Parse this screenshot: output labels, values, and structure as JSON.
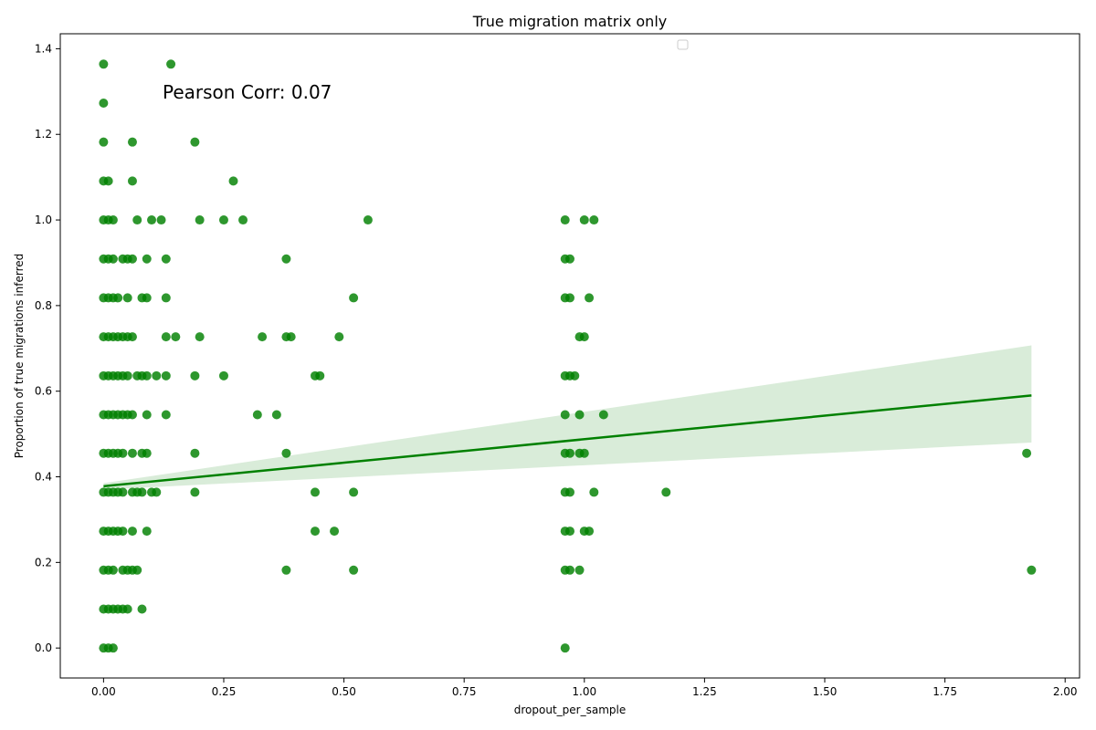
{
  "chart_data": {
    "type": "scatter",
    "title": "True migration matrix only",
    "xlabel": "dropout_per_sample",
    "ylabel": "Proportion of true migrations inferred",
    "xlim": [
      -0.09,
      2.03
    ],
    "ylim": [
      -0.07,
      1.435
    ],
    "xticks": [
      0.0,
      0.25,
      0.5,
      0.75,
      1.0,
      1.25,
      1.5,
      1.75,
      2.0
    ],
    "xtick_labels": [
      "0.00",
      "0.25",
      "0.50",
      "0.75",
      "1.00",
      "1.25",
      "1.50",
      "1.75",
      "2.00"
    ],
    "yticks": [
      0.0,
      0.2,
      0.4,
      0.6,
      0.8,
      1.0,
      1.2,
      1.4
    ],
    "ytick_labels": [
      "0.0",
      "0.2",
      "0.4",
      "0.6",
      "0.8",
      "1.0",
      "1.2",
      "1.4"
    ],
    "annotation": "Pearson Corr: 0.07",
    "colors": {
      "points": "#008000",
      "line": "#008000",
      "band": "#d9ecd9"
    },
    "grid": false,
    "legend": "top-right (empty)",
    "regression": {
      "x": [
        0.0,
        1.93
      ],
      "y": [
        0.378,
        0.59
      ],
      "ci_upper": [
        0.385,
        0.707
      ],
      "ci_lower": [
        0.37,
        0.48
      ]
    },
    "points": [
      [
        0,
        1.364
      ],
      [
        0.14,
        1.364
      ],
      [
        0,
        1.273
      ],
      [
        0,
        1.182
      ],
      [
        0.06,
        1.182
      ],
      [
        0.19,
        1.182
      ],
      [
        0,
        1.091
      ],
      [
        0.01,
        1.091
      ],
      [
        0.06,
        1.091
      ],
      [
        0.27,
        1.091
      ],
      [
        0,
        1.0
      ],
      [
        0.01,
        1.0
      ],
      [
        0.02,
        1.0
      ],
      [
        0.07,
        1.0
      ],
      [
        0.1,
        1.0
      ],
      [
        0.12,
        1.0
      ],
      [
        0.2,
        1.0
      ],
      [
        0.25,
        1.0
      ],
      [
        0.29,
        1.0
      ],
      [
        0.55,
        1.0
      ],
      [
        0.96,
        1.0
      ],
      [
        1.0,
        1.0
      ],
      [
        1.02,
        1.0
      ],
      [
        0,
        0.909
      ],
      [
        0.01,
        0.909
      ],
      [
        0.02,
        0.909
      ],
      [
        0.04,
        0.909
      ],
      [
        0.05,
        0.909
      ],
      [
        0.06,
        0.909
      ],
      [
        0.09,
        0.909
      ],
      [
        0.13,
        0.909
      ],
      [
        0.38,
        0.909
      ],
      [
        0.96,
        0.909
      ],
      [
        0.97,
        0.909
      ],
      [
        0,
        0.818
      ],
      [
        0.01,
        0.818
      ],
      [
        0.02,
        0.818
      ],
      [
        0.03,
        0.818
      ],
      [
        0.05,
        0.818
      ],
      [
        0.08,
        0.818
      ],
      [
        0.09,
        0.818
      ],
      [
        0.13,
        0.818
      ],
      [
        0.52,
        0.818
      ],
      [
        0.96,
        0.818
      ],
      [
        0.97,
        0.818
      ],
      [
        1.01,
        0.818
      ],
      [
        0,
        0.727
      ],
      [
        0.01,
        0.727
      ],
      [
        0.02,
        0.727
      ],
      [
        0.03,
        0.727
      ],
      [
        0.04,
        0.727
      ],
      [
        0.05,
        0.727
      ],
      [
        0.06,
        0.727
      ],
      [
        0.13,
        0.727
      ],
      [
        0.15,
        0.727
      ],
      [
        0.2,
        0.727
      ],
      [
        0.33,
        0.727
      ],
      [
        0.38,
        0.727
      ],
      [
        0.39,
        0.727
      ],
      [
        0.49,
        0.727
      ],
      [
        0.99,
        0.727
      ],
      [
        1.0,
        0.727
      ],
      [
        0,
        0.636
      ],
      [
        0.01,
        0.636
      ],
      [
        0.02,
        0.636
      ],
      [
        0.03,
        0.636
      ],
      [
        0.04,
        0.636
      ],
      [
        0.05,
        0.636
      ],
      [
        0.07,
        0.636
      ],
      [
        0.08,
        0.636
      ],
      [
        0.09,
        0.636
      ],
      [
        0.11,
        0.636
      ],
      [
        0.13,
        0.636
      ],
      [
        0.19,
        0.636
      ],
      [
        0.25,
        0.636
      ],
      [
        0.44,
        0.636
      ],
      [
        0.45,
        0.636
      ],
      [
        0.96,
        0.636
      ],
      [
        0.97,
        0.636
      ],
      [
        0.98,
        0.636
      ],
      [
        0,
        0.545
      ],
      [
        0.01,
        0.545
      ],
      [
        0.02,
        0.545
      ],
      [
        0.03,
        0.545
      ],
      [
        0.04,
        0.545
      ],
      [
        0.05,
        0.545
      ],
      [
        0.06,
        0.545
      ],
      [
        0.09,
        0.545
      ],
      [
        0.13,
        0.545
      ],
      [
        0.32,
        0.545
      ],
      [
        0.36,
        0.545
      ],
      [
        0.96,
        0.545
      ],
      [
        0.99,
        0.545
      ],
      [
        1.04,
        0.545
      ],
      [
        0,
        0.455
      ],
      [
        0.01,
        0.455
      ],
      [
        0.02,
        0.455
      ],
      [
        0.03,
        0.455
      ],
      [
        0.04,
        0.455
      ],
      [
        0.06,
        0.455
      ],
      [
        0.08,
        0.455
      ],
      [
        0.09,
        0.455
      ],
      [
        0.19,
        0.455
      ],
      [
        0.38,
        0.455
      ],
      [
        0.96,
        0.455
      ],
      [
        0.97,
        0.455
      ],
      [
        0.99,
        0.455
      ],
      [
        1.0,
        0.455
      ],
      [
        1.92,
        0.455
      ],
      [
        0,
        0.364
      ],
      [
        0.01,
        0.364
      ],
      [
        0.02,
        0.364
      ],
      [
        0.03,
        0.364
      ],
      [
        0.04,
        0.364
      ],
      [
        0.06,
        0.364
      ],
      [
        0.07,
        0.364
      ],
      [
        0.08,
        0.364
      ],
      [
        0.1,
        0.364
      ],
      [
        0.11,
        0.364
      ],
      [
        0.19,
        0.364
      ],
      [
        0.44,
        0.364
      ],
      [
        0.52,
        0.364
      ],
      [
        0.96,
        0.364
      ],
      [
        0.97,
        0.364
      ],
      [
        1.02,
        0.364
      ],
      [
        1.17,
        0.364
      ],
      [
        0,
        0.273
      ],
      [
        0.01,
        0.273
      ],
      [
        0.02,
        0.273
      ],
      [
        0.03,
        0.273
      ],
      [
        0.04,
        0.273
      ],
      [
        0.06,
        0.273
      ],
      [
        0.09,
        0.273
      ],
      [
        0.44,
        0.273
      ],
      [
        0.48,
        0.273
      ],
      [
        0.96,
        0.273
      ],
      [
        0.97,
        0.273
      ],
      [
        1.0,
        0.273
      ],
      [
        1.01,
        0.273
      ],
      [
        0,
        0.182
      ],
      [
        0.01,
        0.182
      ],
      [
        0.02,
        0.182
      ],
      [
        0.04,
        0.182
      ],
      [
        0.05,
        0.182
      ],
      [
        0.06,
        0.182
      ],
      [
        0.07,
        0.182
      ],
      [
        0.38,
        0.182
      ],
      [
        0.52,
        0.182
      ],
      [
        0.96,
        0.182
      ],
      [
        0.97,
        0.182
      ],
      [
        0.99,
        0.182
      ],
      [
        1.93,
        0.182
      ],
      [
        0,
        0.091
      ],
      [
        0.01,
        0.091
      ],
      [
        0.02,
        0.091
      ],
      [
        0.03,
        0.091
      ],
      [
        0.04,
        0.091
      ],
      [
        0.05,
        0.091
      ],
      [
        0.08,
        0.091
      ],
      [
        0,
        0.0
      ],
      [
        0.01,
        0.0
      ],
      [
        0.02,
        0.0
      ],
      [
        0.96,
        0.0
      ]
    ]
  }
}
